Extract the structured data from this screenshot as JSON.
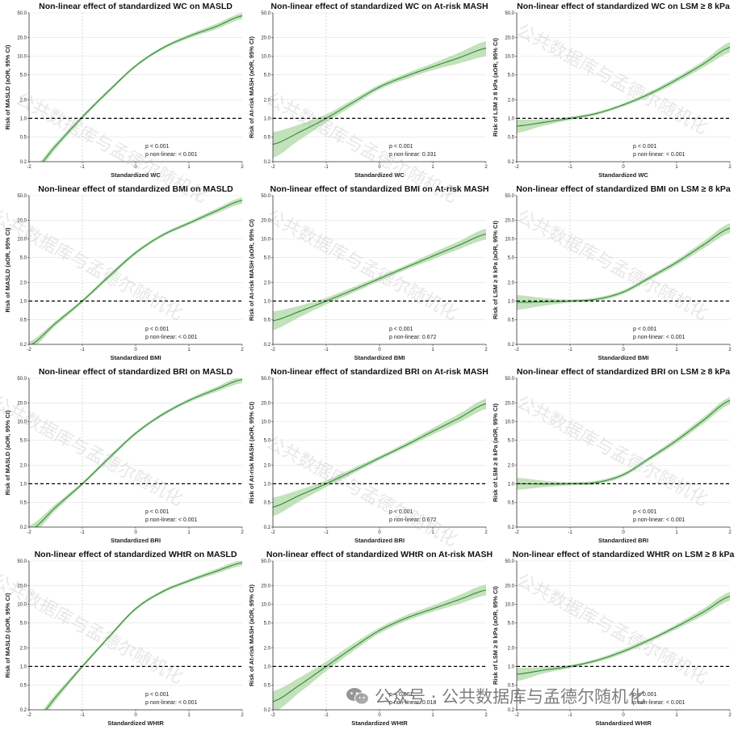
{
  "watermark_text": "公共数据库与孟德尔随机化",
  "footer_watermark": {
    "brand": "公众号 · 公共数据库与孟德尔随机化",
    "icon": "wechat-icon"
  },
  "colors": {
    "line": "#2e8b3a",
    "ci_band": "#b8dcae",
    "reference": "#000000",
    "grid": "#e2e2e2"
  },
  "chart_data": [
    {
      "type": "line",
      "title": "Non-linear effect of standardized WC on MASLD",
      "xlabel": "Standardized WC",
      "ylabel": "Risk of MASLD (aOR, 95% CI)",
      "xlim": [
        -2,
        2
      ],
      "ylim": [
        0.2,
        50
      ],
      "yscale": "log",
      "xticks": [
        -2,
        -1,
        0,
        1,
        2
      ],
      "yticks": [
        "0.2",
        "0.5",
        "1.0",
        "2.0",
        "5.0",
        "10.0",
        "20.0",
        "50.0"
      ],
      "reference_y": 1.0,
      "grid": true,
      "p_overall": "p < 0.001",
      "p_nonlinear": "p non-linear: < 0.001",
      "series": [
        {
          "x": [
            -2,
            -1.5,
            -1,
            -0.5,
            0,
            0.5,
            1,
            1.5,
            2
          ],
          "y": [
            0.12,
            0.36,
            1.05,
            2.8,
            7.0,
            13.5,
            21.0,
            30.0,
            45.0
          ],
          "lower": [
            0.1,
            0.32,
            0.97,
            2.6,
            6.6,
            12.7,
            19.5,
            27.0,
            40.0
          ],
          "upper": [
            0.14,
            0.4,
            1.13,
            3.0,
            7.4,
            14.3,
            22.6,
            33.0,
            50.0
          ]
        }
      ]
    },
    {
      "type": "line",
      "title": "Non-linear effect of standardized WC on At-risk MASH",
      "xlabel": "Standardized WC",
      "ylabel": "Risk of At-risk MASH (aOR, 95% CI)",
      "xlim": [
        -2,
        2
      ],
      "ylim": [
        0.2,
        50
      ],
      "yscale": "log",
      "xticks": [
        -2,
        -1,
        0,
        1,
        2
      ],
      "yticks": [
        "0.2",
        "0.5",
        "1.0",
        "2.0",
        "5.0",
        "10.0",
        "20.0",
        "50.0"
      ],
      "reference_y": 1.0,
      "grid": true,
      "p_overall": "p < 0.001",
      "p_nonlinear": "p non-linear: 0.331",
      "series": [
        {
          "x": [
            -2,
            -1.5,
            -1,
            -0.5,
            0,
            0.5,
            1,
            1.5,
            2
          ],
          "y": [
            0.38,
            0.6,
            1.0,
            1.8,
            3.2,
            4.8,
            6.8,
            9.5,
            13.5
          ],
          "lower": [
            0.23,
            0.45,
            0.86,
            1.6,
            2.9,
            4.3,
            6.0,
            7.7,
            10.0
          ],
          "upper": [
            0.6,
            0.8,
            1.16,
            2.0,
            3.5,
            5.3,
            7.7,
            11.5,
            17.5
          ]
        }
      ]
    },
    {
      "type": "line",
      "title": "Non-linear effect of standardized WC on LSM ≥ 8 kPa",
      "xlabel": "Standardized WC",
      "ylabel": "Risk of LSM ≥ 8 kPa (aOR, 95% CI)",
      "xlim": [
        -2,
        2
      ],
      "ylim": [
        0.2,
        50
      ],
      "yscale": "log",
      "xticks": [
        -2,
        -1,
        0,
        1,
        2
      ],
      "yticks": [
        "0.2",
        "0.5",
        "1.0",
        "2.0",
        "5.0",
        "10.0",
        "20.0",
        "50.0"
      ],
      "reference_y": 1.0,
      "grid": true,
      "p_overall": "p < 0.001",
      "p_nonlinear": "p non-linear: < 0.001",
      "series": [
        {
          "x": [
            -2,
            -1.5,
            -1,
            -0.5,
            0,
            0.5,
            1,
            1.5,
            2
          ],
          "y": [
            0.75,
            0.86,
            1.0,
            1.2,
            1.65,
            2.5,
            4.2,
            7.5,
            14.0
          ],
          "lower": [
            0.58,
            0.76,
            0.94,
            1.13,
            1.55,
            2.3,
            3.8,
            6.6,
            11.5
          ],
          "upper": [
            0.95,
            0.97,
            1.06,
            1.27,
            1.75,
            2.7,
            4.6,
            8.4,
            17.0
          ]
        }
      ]
    },
    {
      "type": "line",
      "title": "Non-linear effect of standardized BMI on MASLD",
      "xlabel": "Standardized BMI",
      "ylabel": "Risk of MASLD (aOR, 95% CI)",
      "xlim": [
        -2,
        2
      ],
      "ylim": [
        0.2,
        50
      ],
      "yscale": "log",
      "xticks": [
        -2,
        -1,
        0,
        1,
        2
      ],
      "yticks": [
        "0.2",
        "0.5",
        "1.0",
        "2.0",
        "5.0",
        "10.0",
        "20.0",
        "50.0"
      ],
      "reference_y": 1.0,
      "grid": true,
      "p_overall": "p < 0.001",
      "p_nonlinear": "p non-linear: < 0.001",
      "series": [
        {
          "x": [
            -2,
            -1.5,
            -1,
            -0.5,
            0,
            0.5,
            1,
            1.5,
            2
          ],
          "y": [
            0.19,
            0.44,
            1.0,
            2.5,
            6.0,
            11.5,
            18.0,
            28.0,
            42.0
          ],
          "lower": [
            0.16,
            0.4,
            0.93,
            2.3,
            5.6,
            10.8,
            16.8,
            25.5,
            37.0
          ],
          "upper": [
            0.22,
            0.48,
            1.07,
            2.7,
            6.4,
            12.2,
            19.3,
            30.5,
            47.0
          ]
        }
      ]
    },
    {
      "type": "line",
      "title": "Non-linear effect of standardized BMI on At-risk MASH",
      "xlabel": "Standardized BMI",
      "ylabel": "Risk of At-risk MASH (aOR, 95% CI)",
      "xlim": [
        -2,
        2
      ],
      "ylim": [
        0.2,
        50
      ],
      "yscale": "log",
      "xticks": [
        -2,
        -1,
        0,
        1,
        2
      ],
      "yticks": [
        "0.2",
        "0.5",
        "1.0",
        "2.0",
        "5.0",
        "10.0",
        "20.0",
        "50.0"
      ],
      "reference_y": 1.0,
      "grid": true,
      "p_overall": "p < 0.001",
      "p_nonlinear": "p non-linear: 0.672",
      "series": [
        {
          "x": [
            -2,
            -1.5,
            -1,
            -0.5,
            0,
            0.5,
            1,
            1.5,
            2
          ],
          "y": [
            0.48,
            0.68,
            1.0,
            1.5,
            2.3,
            3.5,
            5.3,
            8.0,
            12.0
          ],
          "lower": [
            0.34,
            0.55,
            0.88,
            1.35,
            2.1,
            3.2,
            4.7,
            6.9,
            9.8
          ],
          "upper": [
            0.68,
            0.84,
            1.13,
            1.67,
            2.5,
            3.8,
            6.0,
            9.3,
            14.7
          ]
        }
      ]
    },
    {
      "type": "line",
      "title": "Non-linear effect of standardized BMI on LSM ≥ 8 kPa",
      "xlabel": "Standardized BMI",
      "ylabel": "Risk of LSM ≥ 8 kPa (aOR, 95% CI)",
      "xlim": [
        -2,
        2
      ],
      "ylim": [
        0.2,
        50
      ],
      "yscale": "log",
      "xticks": [
        -2,
        -1,
        0,
        1,
        2
      ],
      "yticks": [
        "0.2",
        "0.5",
        "1.0",
        "2.0",
        "5.0",
        "10.0",
        "20.0",
        "50.0"
      ],
      "reference_y": 1.0,
      "grid": true,
      "p_overall": "p < 0.001",
      "p_nonlinear": "p non-linear: < 0.001",
      "series": [
        {
          "x": [
            -2,
            -1.5,
            -1,
            -0.5,
            0,
            0.5,
            1,
            1.5,
            2
          ],
          "y": [
            0.95,
            0.97,
            1.0,
            1.07,
            1.4,
            2.4,
            4.2,
            8.0,
            15.0
          ],
          "lower": [
            0.72,
            0.84,
            0.94,
            1.0,
            1.3,
            2.2,
            3.8,
            7.0,
            12.5
          ],
          "upper": [
            1.25,
            1.12,
            1.06,
            1.14,
            1.5,
            2.6,
            4.6,
            9.1,
            18.0
          ]
        }
      ]
    },
    {
      "type": "line",
      "title": "Non-linear effect of standardized BRI on MASLD",
      "xlabel": "Standardized BRI",
      "ylabel": "Risk of MASLD (aOR, 95% CI)",
      "xlim": [
        -2,
        2
      ],
      "ylim": [
        0.2,
        50
      ],
      "yscale": "log",
      "xticks": [
        -2,
        -1,
        0,
        1,
        2
      ],
      "yticks": [
        "0.2",
        "0.5",
        "1.0",
        "2.0",
        "5.0",
        "10.0",
        "20.0",
        "50.0"
      ],
      "reference_y": 1.0,
      "grid": true,
      "p_overall": "p < 0.001",
      "p_nonlinear": "p non-linear: < 0.001",
      "series": [
        {
          "x": [
            -2,
            -1.5,
            -1,
            -0.5,
            0,
            0.5,
            1,
            1.5,
            2
          ],
          "y": [
            0.17,
            0.42,
            1.0,
            2.6,
            6.5,
            13.0,
            22.0,
            33.0,
            48.0
          ],
          "lower": [
            0.14,
            0.37,
            0.93,
            2.4,
            6.1,
            12.2,
            20.5,
            30.0,
            42.0
          ],
          "upper": [
            0.21,
            0.47,
            1.07,
            2.8,
            6.9,
            13.8,
            23.5,
            36.0,
            54.0
          ]
        }
      ]
    },
    {
      "type": "line",
      "title": "Non-linear effect of standardized BRI on At-risk MASH",
      "xlabel": "Standardized BRI",
      "ylabel": "Risk of At-risk MASH (aOR, 95% CI)",
      "xlim": [
        -2,
        2
      ],
      "ylim": [
        0.2,
        50
      ],
      "yscale": "log",
      "xticks": [
        -2,
        -1,
        0,
        1,
        2
      ],
      "yticks": [
        "0.2",
        "0.5",
        "1.0",
        "2.0",
        "5.0",
        "10.0",
        "20.0",
        "50.0"
      ],
      "reference_y": 1.0,
      "grid": true,
      "p_overall": "p < 0.001",
      "p_nonlinear": "p non-linear: 0.672",
      "series": [
        {
          "x": [
            -2,
            -1.5,
            -1,
            -0.5,
            0,
            0.5,
            1,
            1.5,
            2
          ],
          "y": [
            0.42,
            0.65,
            1.0,
            1.6,
            2.6,
            4.2,
            7.0,
            11.5,
            19.5
          ],
          "lower": [
            0.3,
            0.52,
            0.88,
            1.45,
            2.4,
            3.85,
            6.2,
            9.8,
            16.0
          ],
          "upper": [
            0.6,
            0.8,
            1.13,
            1.77,
            2.8,
            4.6,
            7.9,
            13.5,
            23.5
          ]
        }
      ]
    },
    {
      "type": "line",
      "title": "Non-linear effect of standardized BRI on LSM ≥ 8 kPa",
      "xlabel": "Standardized BRI",
      "ylabel": "Risk of LSM ≥ 8 kPa (aOR, 95% CI)",
      "xlim": [
        -2,
        2
      ],
      "ylim": [
        0.2,
        50
      ],
      "yscale": "log",
      "xticks": [
        -2,
        -1,
        0,
        1,
        2
      ],
      "yticks": [
        "0.2",
        "0.5",
        "1.0",
        "2.0",
        "5.0",
        "10.0",
        "20.0",
        "50.0"
      ],
      "reference_y": 1.0,
      "grid": true,
      "p_overall": "p < 0.001",
      "p_nonlinear": "p non-linear: < 0.001",
      "series": [
        {
          "x": [
            -2,
            -1.5,
            -1,
            -0.5,
            0,
            0.5,
            1,
            1.5,
            2
          ],
          "y": [
            1.0,
            0.99,
            1.0,
            1.05,
            1.4,
            2.6,
            5.0,
            10.5,
            22.0
          ],
          "lower": [
            0.8,
            0.88,
            0.94,
            0.98,
            1.3,
            2.4,
            4.5,
            9.3,
            19.0
          ],
          "upper": [
            1.25,
            1.12,
            1.06,
            1.12,
            1.5,
            2.8,
            5.5,
            11.8,
            25.0
          ]
        }
      ]
    },
    {
      "type": "line",
      "title": "Non-linear effect of standardized WHtR on MASLD",
      "xlabel": "Standardized WHtR",
      "ylabel": "Risk of MASLD (aOR, 95% CI)",
      "xlim": [
        -2,
        2
      ],
      "ylim": [
        0.2,
        50
      ],
      "yscale": "log",
      "xticks": [
        -2,
        -1,
        0,
        1,
        2
      ],
      "yticks": [
        "0.2",
        "0.5",
        "1.0",
        "2.0",
        "5.0",
        "10.0",
        "20.0",
        "50.0"
      ],
      "reference_y": 1.0,
      "grid": true,
      "p_overall": "p < 0.001",
      "p_nonlinear": "p non-linear: < 0.001",
      "series": [
        {
          "x": [
            -2,
            -1.5,
            -1,
            -0.5,
            0,
            0.5,
            1,
            1.5,
            2
          ],
          "y": [
            0.1,
            0.32,
            1.0,
            3.0,
            8.5,
            16.0,
            24.0,
            34.0,
            47.0
          ],
          "lower": [
            0.08,
            0.28,
            0.93,
            2.8,
            8.0,
            15.0,
            22.5,
            31.0,
            42.0
          ],
          "upper": [
            0.12,
            0.36,
            1.07,
            3.2,
            9.0,
            17.0,
            25.5,
            37.0,
            52.0
          ]
        }
      ]
    },
    {
      "type": "line",
      "title": "Non-linear effect of standardized WHtR on At-risk MASH",
      "xlabel": "Standardized WHtR",
      "ylabel": "Risk of At-risk MASH (aOR, 95% CI)",
      "xlim": [
        -2,
        2
      ],
      "ylim": [
        0.2,
        50
      ],
      "yscale": "log",
      "xticks": [
        -2,
        -1,
        0,
        1,
        2
      ],
      "yticks": [
        "0.2",
        "0.5",
        "1.0",
        "2.0",
        "5.0",
        "10.0",
        "20.0",
        "50.0"
      ],
      "reference_y": 1.0,
      "grid": true,
      "p_overall": "p < 0.001",
      "p_nonlinear": "p non-linear: 0.018",
      "series": [
        {
          "x": [
            -2,
            -1.5,
            -1,
            -0.5,
            0,
            0.5,
            1,
            1.5,
            2
          ],
          "y": [
            0.27,
            0.5,
            1.0,
            2.0,
            3.8,
            6.0,
            8.5,
            12.0,
            17.0
          ],
          "lower": [
            0.18,
            0.38,
            0.84,
            1.75,
            3.4,
            5.4,
            7.6,
            10.2,
            14.0
          ],
          "upper": [
            0.4,
            0.66,
            1.2,
            2.3,
            4.2,
            6.7,
            9.6,
            14.2,
            21.0
          ]
        }
      ]
    },
    {
      "type": "line",
      "title": "Non-linear effect of standardized WHtR on LSM ≥ 8 kPa",
      "xlabel": "Standardized WHtR",
      "ylabel": "Risk of LSM ≥ 8 kPa (aOR, 95% CI)",
      "xlim": [
        -2,
        2
      ],
      "ylim": [
        0.2,
        50
      ],
      "yscale": "log",
      "xticks": [
        -2,
        -1,
        0,
        1,
        2
      ],
      "yticks": [
        "0.2",
        "0.5",
        "1.0",
        "2.0",
        "5.0",
        "10.0",
        "20.0",
        "50.0"
      ],
      "reference_y": 1.0,
      "grid": true,
      "p_overall": "p < 0.001",
      "p_nonlinear": "p non-linear: < 0.001",
      "series": [
        {
          "x": [
            -2,
            -1.5,
            -1,
            -0.5,
            0,
            0.5,
            1,
            1.5,
            2
          ],
          "y": [
            0.75,
            0.87,
            1.0,
            1.25,
            1.75,
            2.7,
            4.4,
            7.5,
            13.5
          ],
          "lower": [
            0.58,
            0.77,
            0.94,
            1.17,
            1.62,
            2.5,
            4.0,
            6.6,
            11.5
          ],
          "upper": [
            0.95,
            0.98,
            1.06,
            1.33,
            1.9,
            2.9,
            4.8,
            8.5,
            16.0
          ]
        }
      ]
    }
  ]
}
